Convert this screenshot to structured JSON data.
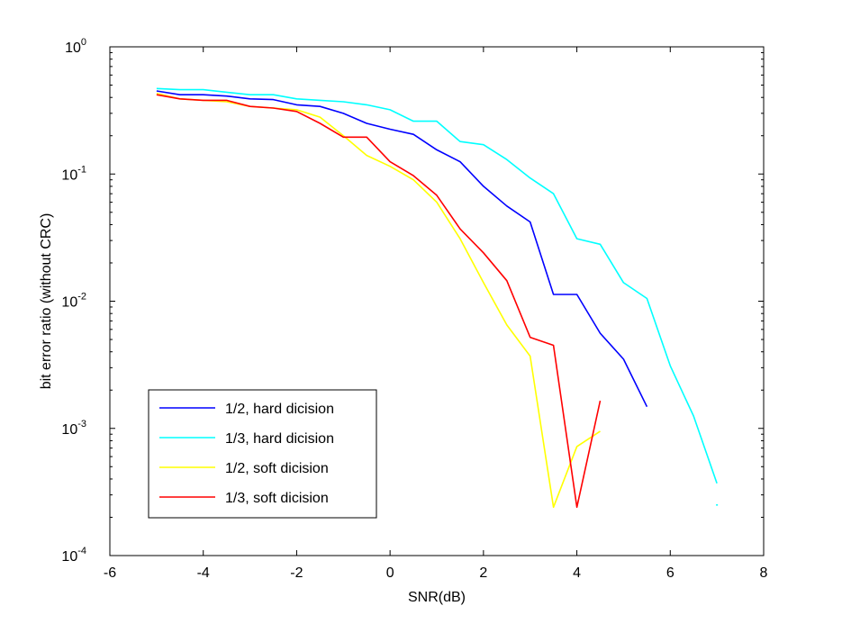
{
  "chart_data": {
    "type": "line",
    "xlabel": "SNR(dB)",
    "ylabel": "bit error ratio (without CRC)",
    "xlim": [
      -6,
      8
    ],
    "ylim": [
      0.0001,
      1
    ],
    "yscale": "log",
    "grid": false,
    "legend_position": "bottom-left",
    "x_ticks": [
      "-6",
      "-4",
      "-2",
      "0",
      "2",
      "4",
      "6",
      "8"
    ],
    "y_ticks": [
      {
        "base": "10",
        "exp": "0"
      },
      {
        "base": "10",
        "exp": "-1"
      },
      {
        "base": "10",
        "exp": "-2"
      },
      {
        "base": "10",
        "exp": "-3"
      },
      {
        "base": "10",
        "exp": "-4"
      }
    ],
    "series": [
      {
        "name": "1/2, hard dicision",
        "color": "#0000ff",
        "points": [
          [
            -5,
            0.45
          ],
          [
            -4.5,
            0.42
          ],
          [
            -4,
            0.42
          ],
          [
            -3.5,
            0.41
          ],
          [
            -3,
            0.39
          ],
          [
            -2.5,
            0.385
          ],
          [
            -2,
            0.35
          ],
          [
            -1.5,
            0.34
          ],
          [
            -1,
            0.3
          ],
          [
            -0.5,
            0.25
          ],
          [
            0,
            0.225
          ],
          [
            0.5,
            0.205
          ],
          [
            1,
            0.155
          ],
          [
            1.5,
            0.125
          ],
          [
            2,
            0.08
          ],
          [
            2.5,
            0.056
          ],
          [
            3,
            0.042
          ],
          [
            3.5,
            0.0113
          ],
          [
            4,
            0.0113
          ],
          [
            4.5,
            0.0056
          ],
          [
            5,
            0.0035
          ],
          [
            5.5,
            0.00148
          ]
        ]
      },
      {
        "name": "1/3, hard dicision",
        "color": "#00ffff",
        "points": [
          [
            -5,
            0.47
          ],
          [
            -4.5,
            0.46
          ],
          [
            -4,
            0.46
          ],
          [
            -3.5,
            0.44
          ],
          [
            -3,
            0.42
          ],
          [
            -2.5,
            0.42
          ],
          [
            -2,
            0.39
          ],
          [
            -1.5,
            0.38
          ],
          [
            -1,
            0.37
          ],
          [
            -0.5,
            0.35
          ],
          [
            0,
            0.32
          ],
          [
            0.5,
            0.26
          ],
          [
            1,
            0.26
          ],
          [
            1.5,
            0.18
          ],
          [
            2,
            0.17
          ],
          [
            2.5,
            0.13
          ],
          [
            3,
            0.093
          ],
          [
            3.5,
            0.07
          ],
          [
            4,
            0.031
          ],
          [
            4.5,
            0.028
          ],
          [
            5,
            0.014
          ],
          [
            5.5,
            0.0105
          ],
          [
            6,
            0.0031
          ],
          [
            6.5,
            0.00125
          ],
          [
            7,
            0.00037
          ]
        ]
      },
      {
        "name": "1/2, soft dicision",
        "color": "#ffff00",
        "points": [
          [
            -5,
            0.43
          ],
          [
            -4.5,
            0.39
          ],
          [
            -4,
            0.38
          ],
          [
            -3.5,
            0.37
          ],
          [
            -3,
            0.34
          ],
          [
            -2.5,
            0.33
          ],
          [
            -2,
            0.32
          ],
          [
            -1.5,
            0.28
          ],
          [
            -1,
            0.2
          ],
          [
            -0.5,
            0.14
          ],
          [
            0,
            0.115
          ],
          [
            0.5,
            0.09
          ],
          [
            1,
            0.06
          ],
          [
            1.5,
            0.031
          ],
          [
            2,
            0.014
          ],
          [
            2.5,
            0.0065
          ],
          [
            3,
            0.0037
          ],
          [
            3.5,
            0.00024
          ],
          [
            4,
            0.00072
          ],
          [
            4.5,
            0.00095
          ]
        ]
      },
      {
        "name": "1/3, soft dicision",
        "color": "#ff0000",
        "points": [
          [
            -5,
            0.42
          ],
          [
            -4.5,
            0.39
          ],
          [
            -4,
            0.38
          ],
          [
            -3.5,
            0.38
          ],
          [
            -3,
            0.34
          ],
          [
            -2.5,
            0.33
          ],
          [
            -2,
            0.31
          ],
          [
            -1.5,
            0.25
          ],
          [
            -1,
            0.195
          ],
          [
            -0.5,
            0.195
          ],
          [
            0,
            0.125
          ],
          [
            0.5,
            0.097
          ],
          [
            1,
            0.068
          ],
          [
            1.5,
            0.037
          ],
          [
            2,
            0.024
          ],
          [
            2.5,
            0.0145
          ],
          [
            3,
            0.0052
          ],
          [
            3.5,
            0.0045
          ],
          [
            4,
            0.00024
          ],
          [
            4.5,
            0.00165
          ]
        ]
      }
    ],
    "extra_points": [
      {
        "series_color": "#00ffff",
        "x": 7,
        "y": 0.00025
      }
    ]
  }
}
